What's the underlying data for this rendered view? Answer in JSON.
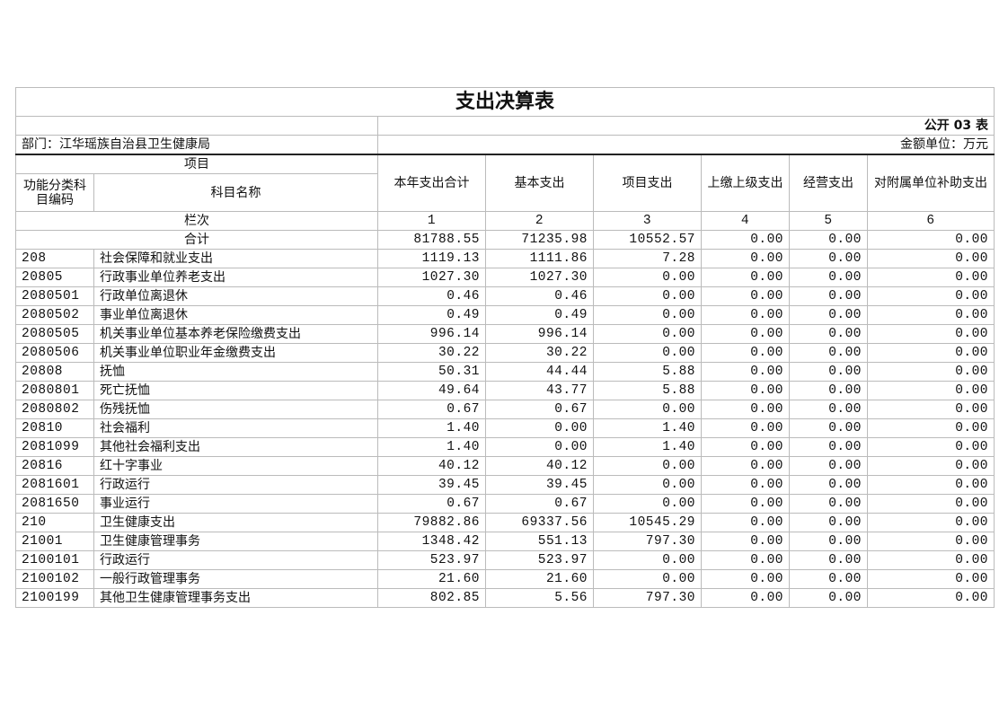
{
  "title": "支出决算表",
  "table_no": "公开 03 表",
  "department": "部门：江华瑶族自治县卫生健康局",
  "unit": "金额单位：万元",
  "headers": {
    "item": "项目",
    "code": "功能分类科目编码",
    "name": "科目名称",
    "col1": "本年支出合计",
    "col2": "基本支出",
    "col3": "项目支出",
    "col4": "上缴上级支出",
    "col5": "经营支出",
    "col6": "对附属单位补助支出"
  },
  "column_index": {
    "label": "栏次",
    "nums": [
      "1",
      "2",
      "3",
      "4",
      "5",
      "6"
    ]
  },
  "total": {
    "label": "合计",
    "values": [
      "81788.55",
      "71235.98",
      "10552.57",
      "0.00",
      "0.00",
      "0.00"
    ]
  },
  "rows": [
    {
      "code": "208",
      "name": "社会保障和就业支出",
      "values": [
        "1119.13",
        "1111.86",
        "7.28",
        "0.00",
        "0.00",
        "0.00"
      ]
    },
    {
      "code": "20805",
      "name": "行政事业单位养老支出",
      "values": [
        "1027.30",
        "1027.30",
        "0.00",
        "0.00",
        "0.00",
        "0.00"
      ]
    },
    {
      "code": "2080501",
      "name": "行政单位离退休",
      "values": [
        "0.46",
        "0.46",
        "0.00",
        "0.00",
        "0.00",
        "0.00"
      ]
    },
    {
      "code": "2080502",
      "name": "事业单位离退休",
      "values": [
        "0.49",
        "0.49",
        "0.00",
        "0.00",
        "0.00",
        "0.00"
      ]
    },
    {
      "code": "2080505",
      "name": "机关事业单位基本养老保险缴费支出",
      "values": [
        "996.14",
        "996.14",
        "0.00",
        "0.00",
        "0.00",
        "0.00"
      ]
    },
    {
      "code": "2080506",
      "name": "机关事业单位职业年金缴费支出",
      "values": [
        "30.22",
        "30.22",
        "0.00",
        "0.00",
        "0.00",
        "0.00"
      ]
    },
    {
      "code": "20808",
      "name": "抚恤",
      "values": [
        "50.31",
        "44.44",
        "5.88",
        "0.00",
        "0.00",
        "0.00"
      ]
    },
    {
      "code": "2080801",
      "name": "死亡抚恤",
      "values": [
        "49.64",
        "43.77",
        "5.88",
        "0.00",
        "0.00",
        "0.00"
      ]
    },
    {
      "code": "2080802",
      "name": "伤残抚恤",
      "values": [
        "0.67",
        "0.67",
        "0.00",
        "0.00",
        "0.00",
        "0.00"
      ]
    },
    {
      "code": "20810",
      "name": "社会福利",
      "values": [
        "1.40",
        "0.00",
        "1.40",
        "0.00",
        "0.00",
        "0.00"
      ]
    },
    {
      "code": "2081099",
      "name": "其他社会福利支出",
      "values": [
        "1.40",
        "0.00",
        "1.40",
        "0.00",
        "0.00",
        "0.00"
      ]
    },
    {
      "code": "20816",
      "name": "红十字事业",
      "values": [
        "40.12",
        "40.12",
        "0.00",
        "0.00",
        "0.00",
        "0.00"
      ]
    },
    {
      "code": "2081601",
      "name": "行政运行",
      "values": [
        "39.45",
        "39.45",
        "0.00",
        "0.00",
        "0.00",
        "0.00"
      ]
    },
    {
      "code": "2081650",
      "name": "事业运行",
      "values": [
        "0.67",
        "0.67",
        "0.00",
        "0.00",
        "0.00",
        "0.00"
      ]
    },
    {
      "code": "210",
      "name": "卫生健康支出",
      "values": [
        "79882.86",
        "69337.56",
        "10545.29",
        "0.00",
        "0.00",
        "0.00"
      ]
    },
    {
      "code": "21001",
      "name": "卫生健康管理事务",
      "values": [
        "1348.42",
        "551.13",
        "797.30",
        "0.00",
        "0.00",
        "0.00"
      ]
    },
    {
      "code": "2100101",
      "name": "行政运行",
      "values": [
        "523.97",
        "523.97",
        "0.00",
        "0.00",
        "0.00",
        "0.00"
      ]
    },
    {
      "code": "2100102",
      "name": "一般行政管理事务",
      "values": [
        "21.60",
        "21.60",
        "0.00",
        "0.00",
        "0.00",
        "0.00"
      ]
    },
    {
      "code": "2100199",
      "name": "其他卫生健康管理事务支出",
      "values": [
        "802.85",
        "5.56",
        "797.30",
        "0.00",
        "0.00",
        "0.00"
      ]
    }
  ]
}
